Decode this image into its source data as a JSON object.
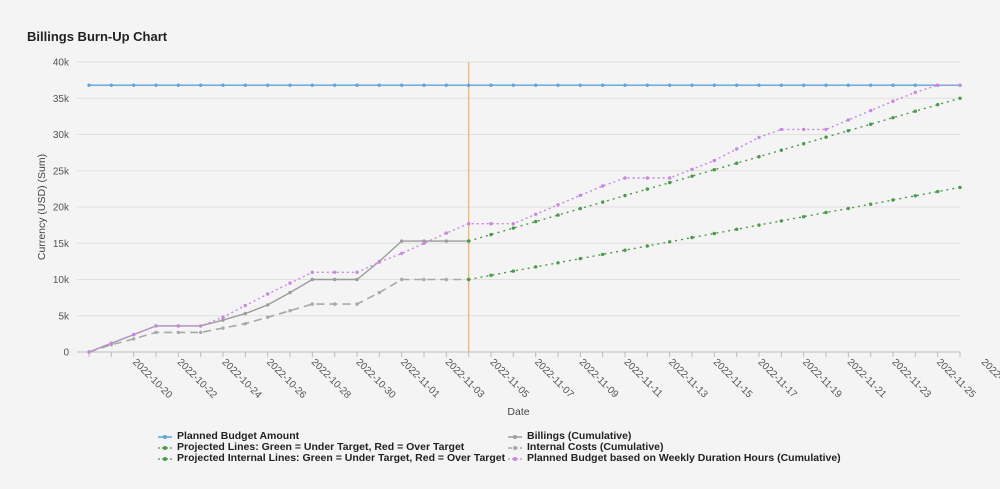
{
  "chart_data": {
    "type": "line",
    "title": "Billings Burn-Up Chart",
    "xlabel": "Date",
    "ylabel": "Currency (USD) (Sum)",
    "ylim": [
      0,
      40000
    ],
    "y_ticks": [
      "0",
      "5k",
      "10k",
      "15k",
      "20k",
      "25k",
      "30k",
      "35k",
      "40k"
    ],
    "x_tick_labels": [
      "2022-10-20",
      "2022-10-22",
      "2022-10-24",
      "2022-10-26",
      "2022-10-28",
      "2022-10-30",
      "2022-11-01",
      "2022-11-03",
      "2022-11-05",
      "2022-11-07",
      "2022-11-09",
      "2022-11-11",
      "2022-11-13",
      "2022-11-15",
      "2022-11-17",
      "2022-11-19",
      "2022-11-21",
      "2022-11-23",
      "2022-11-25",
      "2022-"
    ],
    "x_start": "2022-10-18",
    "x_end": "2022-11-26",
    "today_marker": "2022-11-04",
    "grid": true,
    "legend_position": "bottom",
    "series": [
      {
        "name": "Planned Budget Amount",
        "color": "#5aa7d8",
        "dash": "",
        "x_start": "2022-10-18",
        "x_end": "2022-11-26",
        "values": [
          36800
        ]
      },
      {
        "name": "Billings (Cumulative)",
        "color": "#9c9c9c",
        "dash": "",
        "x_start": "2022-10-18",
        "x_end": "2022-11-04",
        "values": [
          0,
          1200,
          2400,
          3600,
          3600,
          3600,
          4400,
          5300,
          6500,
          8200,
          10000,
          10000,
          10000,
          12500,
          15300,
          15300,
          15300,
          15300
        ]
      },
      {
        "name": "Projected Lines: Green = Under Target, Red = Over Target",
        "color": "#4a9a4a",
        "dash": "2,4",
        "x_start": "2022-11-04",
        "x_end": "2022-11-26",
        "values": [
          15300,
          35000
        ]
      },
      {
        "name": "Internal Costs (Cumulative)",
        "color": "#a8a8a8",
        "dash": "8,5",
        "x_start": "2022-10-18",
        "x_end": "2022-11-04",
        "values": [
          0,
          1000,
          1800,
          2700,
          2700,
          2700,
          3300,
          3900,
          4800,
          5700,
          6600,
          6600,
          6600,
          8200,
          10000,
          10000,
          10000,
          10000
        ]
      },
      {
        "name": "Projected Internal Lines: Green = Under Target, Red = Over Target",
        "color": "#4a9a4a",
        "dash": "2,4",
        "x_start": "2022-11-04",
        "x_end": "2022-11-26",
        "values": [
          10000,
          22700
        ]
      },
      {
        "name": "Planned Budget based on Weekly Duration Hours (Cumulative)",
        "color": "#c887e0",
        "dash": "2,3",
        "x_start": "2022-10-18",
        "x_end": "2022-11-26",
        "values": [
          0,
          1200,
          2400,
          3600,
          3600,
          3600,
          4800,
          6400,
          8000,
          9500,
          11000,
          11000,
          11000,
          12400,
          13600,
          15000,
          16400,
          17700,
          17700,
          17700,
          19000,
          20300,
          21600,
          22900,
          24000,
          24000,
          24000,
          25200,
          26400,
          28000,
          29600,
          30700,
          30700,
          30700,
          32000,
          33300,
          34600,
          35800,
          36800,
          36800
        ]
      }
    ]
  },
  "legend_items": [
    {
      "label": "Planned Budget Amount",
      "color": "#5aa7d8"
    },
    {
      "label": "Projected Lines: Green = Under Target, Red = Over Target",
      "color": "#4a9a4a"
    },
    {
      "label": "Projected Internal Lines: Green = Under Target, Red = Over Target",
      "color": "#4a9a4a"
    },
    {
      "label": "Billings (Cumulative)",
      "color": "#9c9c9c"
    },
    {
      "label": "Internal Costs (Cumulative)",
      "color": "#a8a8a8"
    },
    {
      "label": "Planned Budget based on Weekly Duration Hours (Cumulative)",
      "color": "#c887e0"
    }
  ]
}
